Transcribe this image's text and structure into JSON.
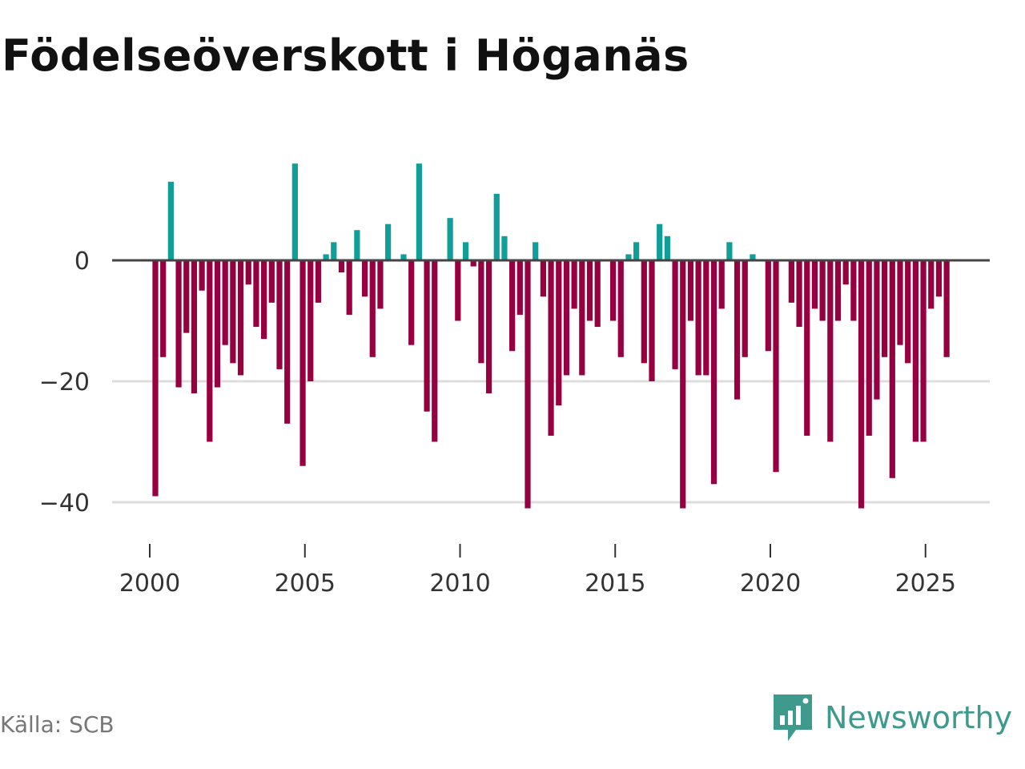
{
  "title": "Födelseöverskott i Höganäs",
  "source": "Källa: SCB",
  "brand": "Newsworthy",
  "colors": {
    "positive": "#0f9e98",
    "negative": "#960040",
    "zero_line": "#444444",
    "grid": "#dddddd"
  },
  "chart_data": {
    "type": "bar",
    "title": "Födelseöverskott i Höganäs",
    "xlabel": "",
    "ylabel": "",
    "frequency": "quarterly",
    "x_start": 2000,
    "ylim": [
      -46,
      18
    ],
    "xlim": [
      1999.2,
      2027.0
    ],
    "y_ticks": [
      0,
      -20,
      -40
    ],
    "y_tick_labels": [
      "0",
      "−20",
      "−40"
    ],
    "x_ticks": [
      2000,
      2005,
      2010,
      2015,
      2020,
      2025
    ],
    "x_tick_labels": [
      "2000",
      "2005",
      "2010",
      "2015",
      "2020",
      "2025"
    ],
    "values": [
      -39,
      -16,
      13,
      -21,
      -12,
      -22,
      -5,
      -30,
      -21,
      -14,
      -17,
      -19,
      -4,
      -11,
      -13,
      -7,
      -18,
      -27,
      16,
      -34,
      -20,
      -7,
      1,
      3,
      -2,
      -9,
      5,
      -6,
      -16,
      -8,
      6,
      0,
      1,
      -14,
      16,
      -25,
      -30,
      0,
      7,
      -10,
      3,
      -1,
      -17,
      -22,
      11,
      4,
      -15,
      -9,
      -41,
      3,
      -6,
      -29,
      -24,
      -19,
      -8,
      -19,
      -10,
      -11,
      0,
      -10,
      -16,
      1,
      3,
      -17,
      -20,
      6,
      4,
      -18,
      -41,
      -10,
      -19,
      -19,
      -37,
      -8,
      3,
      -23,
      -16,
      1,
      0,
      -15,
      -35,
      0,
      -7,
      -11,
      -29,
      -8,
      -10,
      -30,
      -10,
      -4,
      -10,
      -41,
      -29,
      -23,
      -16,
      -36,
      -14,
      -17,
      -30,
      -30,
      -8,
      -6,
      -16
    ]
  }
}
